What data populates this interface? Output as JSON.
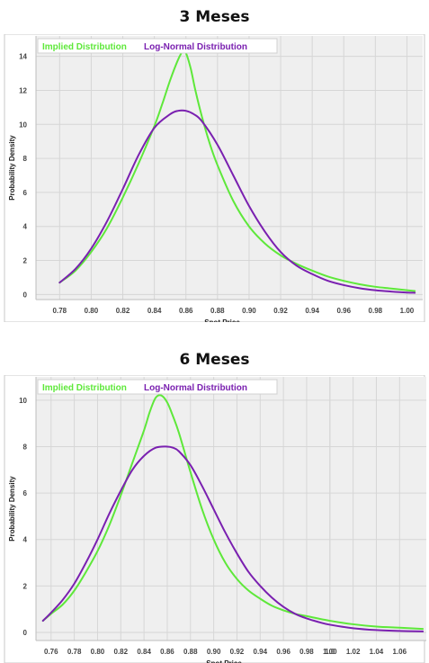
{
  "chart_data": [
    {
      "type": "line",
      "title": "3 Meses",
      "xlabel": "Spot Price",
      "ylabel": "Probability Density",
      "xlim": [
        0.765,
        1.01
      ],
      "ylim": [
        -0.3,
        15.2
      ],
      "x_ticks": [
        "0.78",
        "0.80",
        "0.82",
        "0.84",
        "0.86",
        "0.88",
        "0.90",
        "0.92",
        "0.94",
        "0.96",
        "0.98",
        "1.00"
      ],
      "y_ticks": [
        "0",
        "2",
        "4",
        "6",
        "8",
        "10",
        "12",
        "14"
      ],
      "grid": true,
      "legend_position": "top-left",
      "series": [
        {
          "name": "Implied Distribution",
          "color": "#5ee83a",
          "x": [
            0.78,
            0.79,
            0.8,
            0.81,
            0.82,
            0.83,
            0.84,
            0.845,
            0.85,
            0.855,
            0.858,
            0.86,
            0.863,
            0.866,
            0.87,
            0.875,
            0.88,
            0.89,
            0.9,
            0.91,
            0.92,
            0.93,
            0.94,
            0.95,
            0.96,
            0.97,
            0.98,
            0.99,
            1.0,
            1.005
          ],
          "y": [
            0.7,
            1.4,
            2.5,
            3.9,
            5.7,
            7.7,
            9.9,
            11.2,
            12.6,
            13.8,
            14.3,
            14.2,
            13.3,
            12.0,
            10.5,
            8.9,
            7.6,
            5.5,
            4.0,
            3.0,
            2.3,
            1.8,
            1.4,
            1.05,
            0.8,
            0.6,
            0.45,
            0.35,
            0.25,
            0.2
          ]
        },
        {
          "name": "Log-Normal Distribution",
          "color": "#7a20b0",
          "x": [
            0.78,
            0.79,
            0.8,
            0.81,
            0.82,
            0.83,
            0.84,
            0.85,
            0.855,
            0.86,
            0.865,
            0.87,
            0.88,
            0.89,
            0.9,
            0.91,
            0.92,
            0.93,
            0.94,
            0.95,
            0.96,
            0.97,
            0.98,
            0.99,
            1.0,
            1.005
          ],
          "y": [
            0.7,
            1.5,
            2.7,
            4.3,
            6.2,
            8.2,
            9.8,
            10.6,
            10.8,
            10.8,
            10.6,
            10.2,
            8.8,
            7.0,
            5.2,
            3.7,
            2.5,
            1.7,
            1.2,
            0.8,
            0.55,
            0.37,
            0.25,
            0.17,
            0.11,
            0.1
          ]
        }
      ]
    },
    {
      "type": "line",
      "title": "6 Meses",
      "xlabel": "Spot Price",
      "ylabel": "Probability Density",
      "xlim": [
        0.747,
        1.083
      ],
      "ylim": [
        -0.35,
        11.0
      ],
      "x_ticks": [
        "0.76",
        "0.78",
        "0.80",
        "0.82",
        "0.84",
        "0.86",
        "0.88",
        "0.90",
        "0.92",
        "0.94",
        "0.96",
        "0.98",
        "1.00",
        "1.02",
        "1.04",
        "1.06",
        "1.0"
      ],
      "y_ticks": [
        "0",
        "2",
        "4",
        "6",
        "8",
        "10"
      ],
      "grid": true,
      "legend_position": "top-left",
      "series": [
        {
          "name": "Implied Distribution",
          "color": "#5ee83a",
          "x": [
            0.753,
            0.76,
            0.77,
            0.78,
            0.79,
            0.8,
            0.81,
            0.82,
            0.83,
            0.84,
            0.845,
            0.85,
            0.855,
            0.86,
            0.865,
            0.87,
            0.88,
            0.89,
            0.9,
            0.91,
            0.92,
            0.93,
            0.94,
            0.95,
            0.96,
            0.97,
            0.98,
            1.0,
            1.02,
            1.04,
            1.06,
            1.08
          ],
          "y": [
            0.5,
            0.8,
            1.2,
            1.8,
            2.6,
            3.5,
            4.6,
            5.9,
            7.3,
            8.7,
            9.5,
            10.1,
            10.2,
            9.9,
            9.3,
            8.6,
            6.9,
            5.3,
            4.0,
            3.0,
            2.3,
            1.8,
            1.45,
            1.15,
            0.95,
            0.8,
            0.7,
            0.5,
            0.35,
            0.25,
            0.2,
            0.15
          ]
        },
        {
          "name": "Log-Normal Distribution",
          "color": "#7a20b0",
          "x": [
            0.753,
            0.76,
            0.77,
            0.78,
            0.79,
            0.8,
            0.81,
            0.82,
            0.83,
            0.84,
            0.85,
            0.86,
            0.865,
            0.87,
            0.88,
            0.89,
            0.9,
            0.91,
            0.92,
            0.93,
            0.94,
            0.95,
            0.96,
            0.97,
            0.98,
            0.99,
            1.0,
            1.02,
            1.04,
            1.06,
            1.08
          ],
          "y": [
            0.5,
            0.85,
            1.4,
            2.1,
            3.0,
            4.0,
            5.1,
            6.1,
            7.0,
            7.6,
            7.95,
            8.0,
            7.95,
            7.8,
            7.2,
            6.3,
            5.3,
            4.3,
            3.4,
            2.6,
            2.0,
            1.5,
            1.1,
            0.8,
            0.6,
            0.45,
            0.33,
            0.18,
            0.1,
            0.06,
            0.04
          ]
        }
      ]
    }
  ]
}
